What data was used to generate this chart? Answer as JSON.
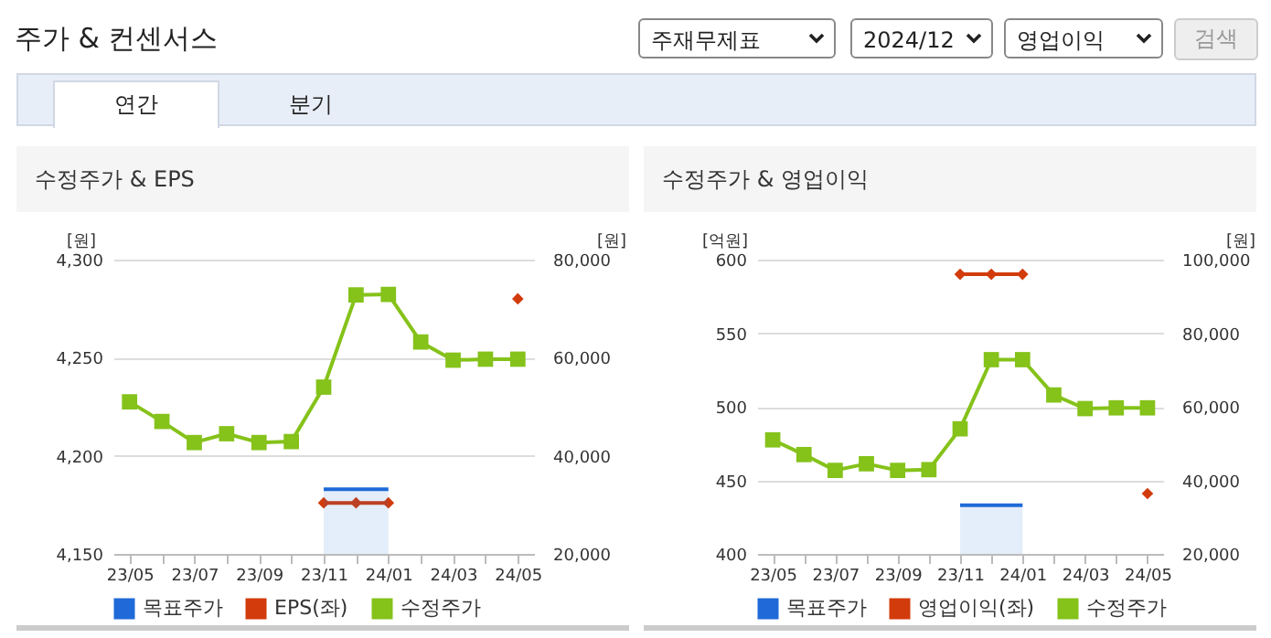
{
  "chart_data": [
    {
      "type": "other",
      "title": "주가 & 컨센서스",
      "annotations": [
        "주재무제표",
        "2024/12",
        "영업이익",
        "검색",
        "연간",
        "분기"
      ]
    },
    {
      "type": "line",
      "title": "수정주가 & EPS",
      "ylabel": "[원]",
      "y2label": "[원]",
      "categories": [
        "23/05",
        null,
        "23/07",
        null,
        "23/09",
        null,
        "23/11",
        null,
        "24/01",
        null,
        "24/03",
        null,
        "24/05"
      ],
      "series": [
        {
          "name": "목표주가",
          "type": "area",
          "axis": "y2",
          "color": "#1f6ad8",
          "values": [
            null,
            null,
            null,
            null,
            null,
            null,
            33200,
            33200,
            33200,
            null,
            null,
            null,
            null
          ]
        },
        {
          "name": "EPS(좌)",
          "type": "line",
          "color": "#d23b0b",
          "marker": "diamond",
          "values": [
            null,
            null,
            null,
            null,
            null,
            null,
            4176,
            4176,
            4176,
            null,
            null,
            null,
            4280
          ]
        },
        {
          "name": "수정주가",
          "type": "line",
          "axis": "y2",
          "color": "#85c21a",
          "marker": "square",
          "values": [
            51000,
            47000,
            42700,
            44500,
            42700,
            42900,
            54000,
            72800,
            72900,
            63200,
            59500,
            59700,
            59700
          ]
        }
      ],
      "ylim": [
        4150,
        4300
      ],
      "yticks": [
        {
          "value": 4150,
          "label": "4,150"
        },
        {
          "value": 4200,
          "label": "4,200"
        },
        {
          "value": 4250,
          "label": "4,250"
        },
        {
          "value": 4300,
          "label": "4,300"
        }
      ],
      "y2lim": [
        20000,
        80000
      ],
      "y2ticks": [
        {
          "value": 20000,
          "label": "20,000"
        },
        {
          "value": 40000,
          "label": "40,000"
        },
        {
          "value": 60000,
          "label": "60,000"
        },
        {
          "value": 80000,
          "label": "80,000"
        }
      ],
      "grid": "y",
      "legend": "bottom"
    },
    {
      "type": "line",
      "title": "수정주가 & 영업이익",
      "ylabel": "[억원]",
      "y2label": "[원]",
      "categories": [
        "23/05",
        null,
        "23/07",
        null,
        "23/09",
        null,
        "23/11",
        null,
        "24/01",
        null,
        "24/03",
        null,
        "24/05"
      ],
      "series": [
        {
          "name": "목표주가",
          "type": "area",
          "axis": "y2",
          "color": "#1f6ad8",
          "values": [
            null,
            null,
            null,
            null,
            null,
            null,
            33200,
            33200,
            33200,
            null,
            null,
            null,
            null
          ]
        },
        {
          "name": "영업이익(좌)",
          "type": "line",
          "color": "#d23b0b",
          "marker": "diamond",
          "values": [
            null,
            null,
            null,
            null,
            null,
            null,
            590,
            590,
            590,
            null,
            null,
            null,
            441
          ]
        },
        {
          "name": "수정주가",
          "type": "line",
          "axis": "y2",
          "color": "#85c21a",
          "marker": "square",
          "values": [
            51000,
            47000,
            42700,
            44500,
            42700,
            42900,
            54000,
            72800,
            72800,
            63200,
            59500,
            59700,
            59700
          ]
        }
      ],
      "ylim": [
        400,
        600
      ],
      "yticks": [
        400,
        450,
        500,
        550,
        600
      ],
      "y2lim": [
        20000,
        100000
      ],
      "y2ticks": [
        {
          "value": 20000,
          "label": "20,000"
        },
        {
          "value": 40000,
          "label": "40,000"
        },
        {
          "value": 60000,
          "label": "60,000"
        },
        {
          "value": 80000,
          "label": "80,000"
        },
        {
          "value": 100000,
          "label": "100,000"
        }
      ],
      "grid": "y",
      "legend": "bottom"
    }
  ]
}
